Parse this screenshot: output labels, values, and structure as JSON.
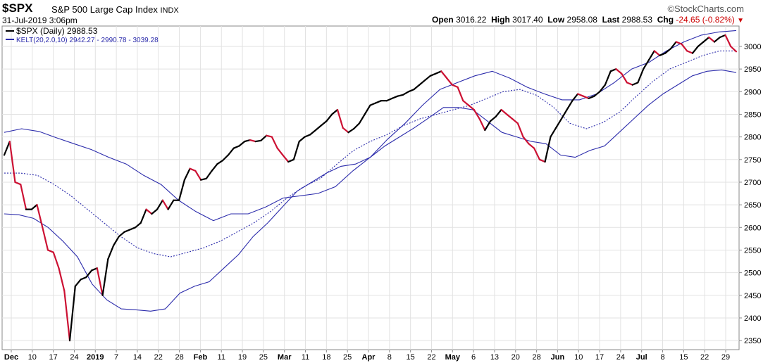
{
  "header": {
    "symbol": "$SPX",
    "name": "S&P 500 Large Cap Index",
    "exchange": "INDX",
    "datetime": "31-Jul-2019 3:06pm",
    "watermark": "©StockCharts.com",
    "open_label": "Open",
    "open_value": "3016.22",
    "high_label": "High",
    "high_value": "3017.40",
    "low_label": "Low",
    "low_value": "2958.08",
    "last_label": "Last",
    "last_value": "2988.53",
    "chg_label": "Chg",
    "chg_value": "-24.65 (-0.82%)",
    "chg_arrow": "▼"
  },
  "colors": {
    "up": "#000000",
    "down": "#cc1133",
    "band": "#2b2bab",
    "grid": "#e2e2e2",
    "axis": "#888888"
  },
  "chart_data": {
    "type": "line",
    "legend": [
      {
        "label": "$SPX (Daily) 2988.53",
        "color": "#000000",
        "style": "solid"
      },
      {
        "label": "KELT(20,2.0,10) 2942.27 - 2990.78 - 3039.28",
        "color": "#2b2bab",
        "style": "solid"
      }
    ],
    "legend_position": "top-left",
    "grid": true,
    "ylim": [
      2330,
      3045
    ],
    "y_ticks": [
      2350,
      2400,
      2450,
      2500,
      2550,
      2600,
      2650,
      2700,
      2750,
      2800,
      2850,
      2900,
      2950,
      3000
    ],
    "x_ticks": [
      "Dec",
      "10",
      "17",
      "24",
      "2019",
      "7",
      "14",
      "22",
      "28",
      "Feb",
      "11",
      "19",
      "25",
      "Mar",
      "11",
      "18",
      "25",
      "Apr",
      "8",
      "15",
      "22",
      "May",
      "6",
      "13",
      "20",
      "28",
      "Jun",
      "10",
      "17",
      "24",
      "Jul",
      "8",
      "15",
      "22",
      "29"
    ],
    "series": [
      {
        "name": "$SPX (Daily)",
        "values": [
          2760,
          2790,
          2700,
          2695,
          2640,
          2640,
          2650,
          2600,
          2550,
          2545,
          2510,
          2460,
          2350,
          2470,
          2485,
          2490,
          2505,
          2510,
          2450,
          2530,
          2560,
          2580,
          2590,
          2595,
          2600,
          2610,
          2640,
          2630,
          2640,
          2660,
          2640,
          2660,
          2660,
          2705,
          2730,
          2725,
          2705,
          2708,
          2725,
          2740,
          2748,
          2760,
          2775,
          2780,
          2790,
          2793,
          2790,
          2792,
          2803,
          2800,
          2775,
          2760,
          2745,
          2750,
          2790,
          2800,
          2805,
          2815,
          2825,
          2835,
          2850,
          2860,
          2820,
          2810,
          2818,
          2830,
          2850,
          2870,
          2875,
          2880,
          2880,
          2885,
          2890,
          2893,
          2900,
          2905,
          2915,
          2925,
          2935,
          2940,
          2945,
          2930,
          2915,
          2910,
          2880,
          2870,
          2860,
          2840,
          2815,
          2835,
          2845,
          2860,
          2850,
          2840,
          2830,
          2800,
          2785,
          2775,
          2750,
          2745,
          2800,
          2820,
          2840,
          2860,
          2880,
          2895,
          2890,
          2885,
          2890,
          2900,
          2915,
          2945,
          2950,
          2940,
          2920,
          2915,
          2920,
          2950,
          2970,
          2990,
          2980,
          2985,
          2995,
          3010,
          3005,
          2990,
          2985,
          3000,
          3010,
          3020,
          3010,
          3020,
          3025,
          3000,
          2988.53
        ]
      },
      {
        "name": "KELT upper",
        "values": [
          2810,
          2818,
          2812,
          2798,
          2785,
          2772,
          2755,
          2740,
          2715,
          2695,
          2660,
          2635,
          2615,
          2630,
          2630,
          2645,
          2665,
          2670,
          2675,
          2690,
          2725,
          2755,
          2795,
          2830,
          2870,
          2905,
          2920,
          2935,
          2945,
          2930,
          2910,
          2895,
          2882,
          2882,
          2895,
          2920,
          2950,
          2965,
          2990,
          3010,
          3025,
          3032,
          3035
        ]
      },
      {
        "name": "KELT middle",
        "values": [
          2720,
          2720,
          2715,
          2695,
          2670,
          2640,
          2610,
          2580,
          2555,
          2542,
          2535,
          2545,
          2555,
          2570,
          2590,
          2610,
          2635,
          2665,
          2690,
          2708,
          2740,
          2770,
          2790,
          2805,
          2825,
          2840,
          2850,
          2860,
          2870,
          2885,
          2900,
          2905,
          2892,
          2866,
          2830,
          2818,
          2832,
          2855,
          2890,
          2923,
          2950,
          2965,
          2980,
          2990,
          2990
        ]
      },
      {
        "name": "KELT lower",
        "values": [
          2630,
          2628,
          2620,
          2600,
          2570,
          2535,
          2475,
          2440,
          2420,
          2418,
          2415,
          2420,
          2455,
          2470,
          2480,
          2510,
          2540,
          2580,
          2610,
          2645,
          2680,
          2700,
          2720,
          2735,
          2740,
          2755,
          2780,
          2800,
          2820,
          2842,
          2865,
          2865,
          2860,
          2835,
          2810,
          2800,
          2790,
          2785,
          2760,
          2755,
          2770,
          2780,
          2810,
          2840,
          2870,
          2895,
          2915,
          2935,
          2945,
          2948,
          2942.27
        ]
      }
    ]
  }
}
